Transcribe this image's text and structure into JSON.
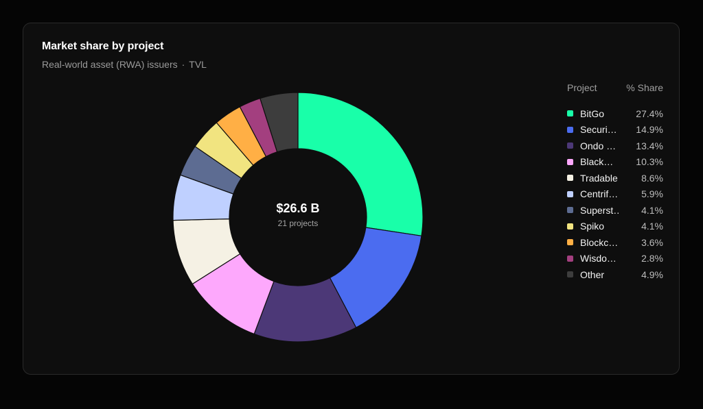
{
  "header": {
    "title": "Market share by project",
    "subtitle": "Real-world asset (RWA) issuers",
    "subtitle_sep": "·",
    "metric": "TVL"
  },
  "center": {
    "total": "$26.6 B",
    "count": "21 projects"
  },
  "legend": {
    "col_project": "Project",
    "col_share": "% Share"
  },
  "chart_data": {
    "type": "pie",
    "variant": "donut",
    "title": "Market share by project",
    "subtitle": "Real-world asset (RWA) issuers · TVL",
    "unit": "%",
    "start_angle": "12 o'clock, clockwise",
    "legend_position": "right",
    "slices": [
      {
        "label": "BitGo",
        "value": 27.4,
        "color": "#19ffa9"
      },
      {
        "label": "Securi…",
        "value": 14.9,
        "color": "#4b6cf0"
      },
      {
        "label": "Ondo …",
        "value": 13.4,
        "color": "#4c3877"
      },
      {
        "label": "Black…",
        "value": 10.3,
        "color": "#fda8fc"
      },
      {
        "label": "Tradable",
        "value": 8.6,
        "color": "#f5f1e4"
      },
      {
        "label": "Centrif…",
        "value": 5.9,
        "color": "#bfd0ff"
      },
      {
        "label": "Superst…",
        "value": 4.1,
        "color": "#5d6c92"
      },
      {
        "label": "Spiko",
        "value": 4.1,
        "color": "#f1e480"
      },
      {
        "label": "Blockc…",
        "value": 3.6,
        "color": "#ffaf45"
      },
      {
        "label": "Wisdo…",
        "value": 2.8,
        "color": "#a33f7f"
      },
      {
        "label": "Other",
        "value": 4.9,
        "color": "#3d3d3d"
      }
    ]
  }
}
